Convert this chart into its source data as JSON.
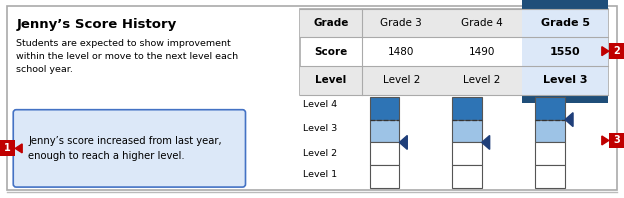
{
  "title": "Jenny’s Score History",
  "description_lines": [
    "Students are expected to show improvement",
    "within the level or move to the next level each",
    "school year."
  ],
  "callout_text": "Jenny’s score increased from last year,\nenough to reach a higher level.",
  "table_grades": [
    "Grade",
    "Grade 3",
    "Grade 4",
    "Grade 5"
  ],
  "table_scores": [
    "Score",
    "1480",
    "1490",
    "1550"
  ],
  "table_levels": [
    "Level",
    "Level 2",
    "Level 2",
    "Level 3"
  ],
  "bg_color": "#ffffff",
  "outer_border_color": "#999999",
  "table_header_bg": "#1f4e79",
  "table_border": "#aaaaaa",
  "table_gray_row": "#e8e8e8",
  "table_highlight_col": "#dce8f8",
  "callout_bg": "#dce8f8",
  "callout_border": "#4472c4",
  "gauge_level_labels": [
    "Level 4",
    "Level 3",
    "Level 2",
    "Level 1"
  ],
  "arrow_color": "#1f3f7a",
  "gauge_light_blue": "#9dc3e6",
  "gauge_dark_blue": "#2e74b5",
  "gauge_white": "#ffffff",
  "badge_color": "#c00000",
  "gauge_arrow_boundaries_g3": 2,
  "gauge_arrow_boundaries_g4": 2,
  "gauge_arrow_boundaries_g5": 3
}
